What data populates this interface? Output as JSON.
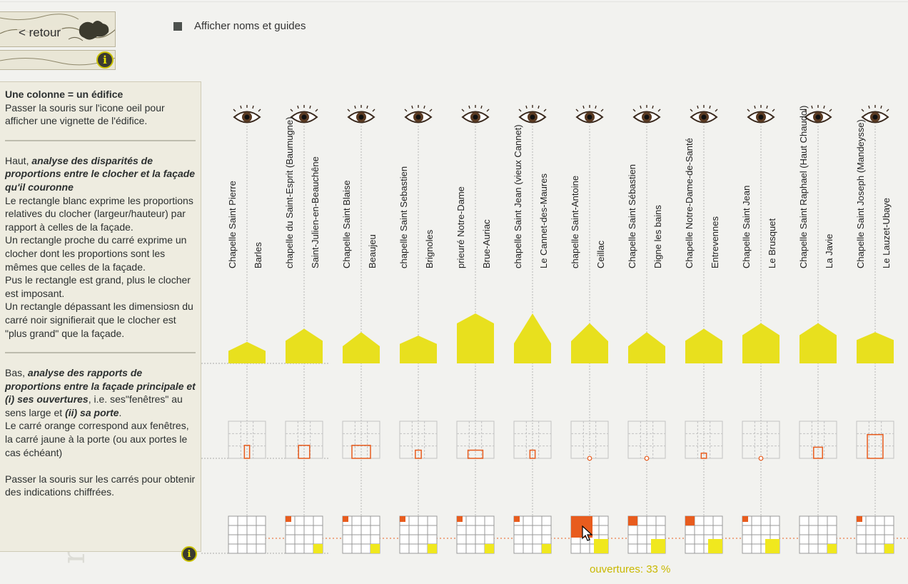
{
  "nav": {
    "back_label": "< retour",
    "info_icon": "i"
  },
  "toggle": {
    "label": "Afficher noms et guides",
    "checked": true,
    "color": "#4d514e"
  },
  "info_panel": {
    "s1_title": "Une colonne = un édifice",
    "s1_text": "Passer la souris sur l'icone oeil pour afficher une vignette de l'édifice.",
    "s2_lead": "Haut, ",
    "s2_title": "analyse des disparités de proportions entre le clocher et la façade qu'il couronne",
    "s2_p1": "Le rectangle blanc exprime les proportions relatives du clocher (largeur/hauteur) par rapport à celles de la façade.",
    "s2_p2": "Un rectangle proche du carré exprime un clocher dont les proportions sont les mêmes que celles de la façade.",
    "s2_p3": "Pus le rectangle est grand, plus le clocher est imposant.",
    "s2_p4": "Un rectangle dépassant les dimensiosn du carré noir signifierait que le clocher est \"plus grand\" que la façade.",
    "s3_lead": "Bas, ",
    "s3_title": "analyse des rapports de proportions entre la façade principale et (i) ses ouvertures",
    "s3_mid": ", i.e. ses\"fenêtres\" au sens large et ",
    "s3_title2": "(ii) sa porte",
    "s3_end": ".",
    "s3_p1": "Le carré orange correspond aux fenêtres, la carré jaune à la porte (ou aux portes le cas échéant)",
    "s3_p2": "Passer la souris sur les carrés pour obtenir des indications chiffrées."
  },
  "colors": {
    "tower": "#e8e01e",
    "window": "#e85c1e",
    "door": "#f0e81e",
    "accent_text": "#c9b800"
  },
  "columns": [
    {
      "name": "Chapelle Saint Pierre",
      "place": "Barles",
      "tower_h": 0.31,
      "tower_peak": 0.42,
      "window_w": 0.14,
      "window_h": 0.35,
      "window_shape": "rect",
      "win_sq": 0,
      "door_sq": 0
    },
    {
      "name": "chapelle du Saint-Esprit (Baumugne)",
      "place": "Saint-Julien-en-Beauchêne",
      "tower_h": 0.5,
      "tower_peak": 0.35,
      "window_w": 0.3,
      "window_h": 0.35,
      "window_shape": "rect",
      "win_sq": 1,
      "door_sq": 1
    },
    {
      "name": "Chapelle Saint Blaise",
      "place": "Beaujeu",
      "tower_h": 0.45,
      "tower_peak": 0.45,
      "window_w": 0.5,
      "window_h": 0.35,
      "window_shape": "rect",
      "win_sq": 1,
      "door_sq": 1
    },
    {
      "name": "chapelle Saint Sebastien",
      "place": "Brignoles",
      "tower_h": 0.4,
      "tower_peak": 0.3,
      "window_w": 0.16,
      "window_h": 0.22,
      "window_shape": "rect",
      "win_sq": 1,
      "door_sq": 1
    },
    {
      "name": "prieuré Notre-Dame",
      "place": "Brue-Auriac",
      "tower_h": 0.72,
      "tower_peak": 0.2,
      "window_w": 0.4,
      "window_h": 0.22,
      "window_shape": "rect",
      "win_sq": 1,
      "door_sq": 1
    },
    {
      "name": "chapelle Saint Jean (vieux Cannet)",
      "place": "Le Cannet-des-Maures",
      "tower_h": 0.72,
      "tower_peak": 0.6,
      "window_w": 0.14,
      "window_h": 0.22,
      "window_shape": "rect",
      "win_sq": 1,
      "door_sq": 1
    },
    {
      "name": "chapelle Saint-Antoine",
      "place": "Ceillac",
      "tower_h": 0.58,
      "tower_peak": 0.45,
      "window_w": 0.1,
      "window_h": 0.1,
      "window_shape": "circle",
      "win_sq": 3,
      "door_sq": 2
    },
    {
      "name": "Chapelle Saint Sébastien",
      "place": "Digne les bains",
      "tower_h": 0.45,
      "tower_peak": 0.45,
      "window_w": 0.1,
      "window_h": 0.1,
      "window_shape": "circle",
      "win_sq": 2,
      "door_sq": 2
    },
    {
      "name": "Chapelle Notre-Dame-de-Santé",
      "place": "Entrevennes",
      "tower_h": 0.5,
      "tower_peak": 0.35,
      "window_w": 0.14,
      "window_h": 0.14,
      "window_shape": "rect",
      "win_sq": 2,
      "door_sq": 2
    },
    {
      "name": "Chapelle Saint Jean",
      "place": "Le Brusquet",
      "tower_h": 0.58,
      "tower_peak": 0.3,
      "window_w": 0.1,
      "window_h": 0.1,
      "window_shape": "circle",
      "win_sq": 1,
      "door_sq": 2
    },
    {
      "name": "Chapelle Saint Raphael (Haut Chaudol)",
      "place": "La Javie",
      "tower_h": 0.58,
      "tower_peak": 0.3,
      "window_w": 0.24,
      "window_h": 0.3,
      "window_shape": "rect",
      "win_sq": 0,
      "door_sq": 1
    },
    {
      "name": "Chapelle Saint Joseph (Mandeysse)",
      "place": "Le Lauzet-Ubaye",
      "tower_h": 0.45,
      "tower_peak": 0.25,
      "window_w": 0.42,
      "window_h": 0.64,
      "window_shape": "rect",
      "win_sq": 1,
      "door_sq": 1
    }
  ],
  "openings_label": "ouvertures: 33 %"
}
